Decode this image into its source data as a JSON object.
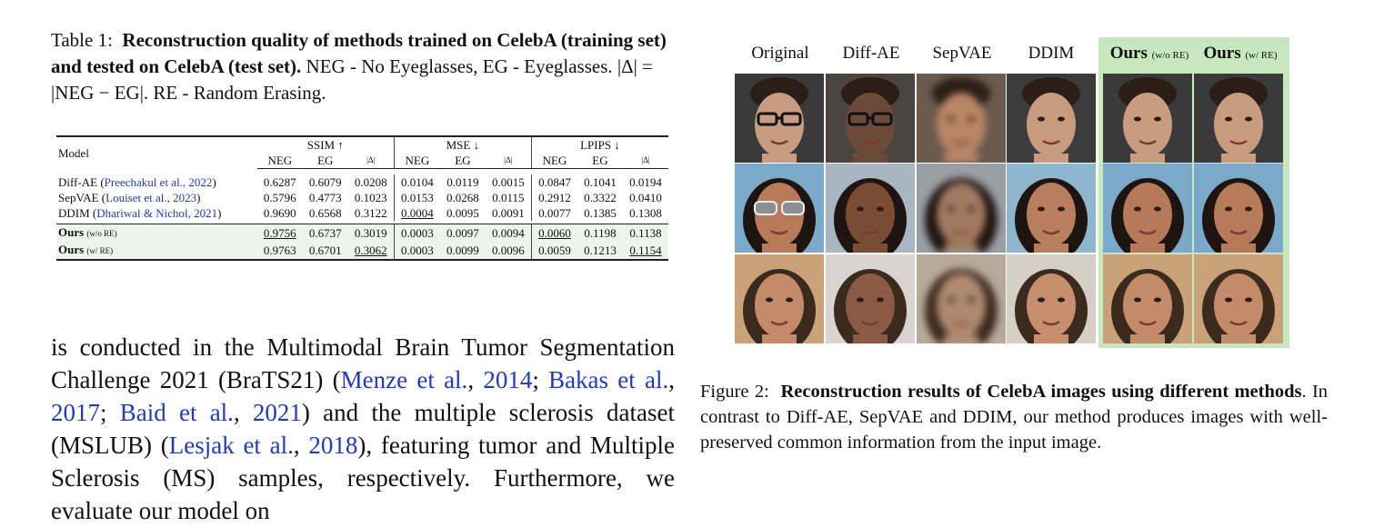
{
  "table_caption": {
    "label": "Table 1:",
    "bold": "Reconstruction quality of methods trained on CelebA (training set) and tested on CelebA (test set).",
    "rest": "NEG - No Eyeglasses, EG - Eyeglasses. |Δ| = |NEG − EG|. RE - Random Erasing."
  },
  "table": {
    "model_header": "Model",
    "groups": [
      "SSIM ↑",
      "MSE ↓",
      "LPIPS ↓"
    ],
    "sub": [
      "NEG",
      "EG",
      "|Δ|"
    ],
    "rows": [
      {
        "name": "Diff-AE (",
        "cite": "Preechakul et al., 2022",
        "close": ")",
        "vals": [
          "0.6287",
          "0.6079",
          "0.0208",
          "0.0104",
          "0.0119",
          "0.0015",
          "0.0847",
          "0.1041",
          "0.0194"
        ]
      },
      {
        "name": "SepVAE (",
        "cite": "Louiset et al., 2023",
        "close": ")",
        "vals": [
          "0.5796",
          "0.4773",
          "0.1023",
          "0.0153",
          "0.0268",
          "0.0115",
          "0.2912",
          "0.3322",
          "0.0410"
        ]
      },
      {
        "name": "DDIM (",
        "cite": "Dhariwal & Nichol, 2021",
        "close": ")",
        "vals": [
          "0.9690",
          "0.6568",
          "0.3122",
          "0.0004",
          "0.0095",
          "0.0091",
          "0.0077",
          "0.1385",
          "0.1308"
        ]
      },
      {
        "name": "Ours",
        "suffix": "(w/o RE)",
        "vals": [
          "0.9756",
          "0.6737",
          "0.3019",
          "0.0003",
          "0.0097",
          "0.0094",
          "0.0060",
          "0.1198",
          "0.1138"
        ]
      },
      {
        "name": "Ours",
        "suffix": "(w/ RE)",
        "vals": [
          "0.9763",
          "0.6701",
          "0.3062",
          "0.0003",
          "0.0099",
          "0.0096",
          "0.0059",
          "0.1213",
          "0.1154"
        ]
      }
    ]
  },
  "body": {
    "t1": "is conducted in the Multimodal Brain Tumor Segmentation Challenge 2021 (BraTS21) (",
    "c1a": "Menze et al.",
    "c1b": "2014",
    "c2a": "Bakas et al.",
    "c2b": "2017",
    "c3a": "Baid et al.",
    "c3b": "2021",
    "t2": ") and the multiple sclerosis dataset (MSLUB) (",
    "c4a": "Lesjak et al.",
    "c4b": "2018",
    "t3": "), featuring tumor and Multiple Sclerosis (MS) samples, respectively. Furthermore, we evaluate our model on"
  },
  "figure": {
    "columns": [
      "Original",
      "Diff-AE",
      "SepVAE",
      "DDIM"
    ],
    "ours1": "Ours",
    "ours1_sub": "(w/o RE)",
    "ours2": "Ours",
    "ours2_sub": "(w/ RE)",
    "highlight_color": "#c7e8bf"
  },
  "fig_caption": {
    "label": "Figure 2:",
    "bold": "Reconstruction results of CelebA images using different methods",
    "rest": ". In contrast to Diff-AE, SepVAE and DDIM, our method produces images with well-preserved common information from the input image."
  }
}
